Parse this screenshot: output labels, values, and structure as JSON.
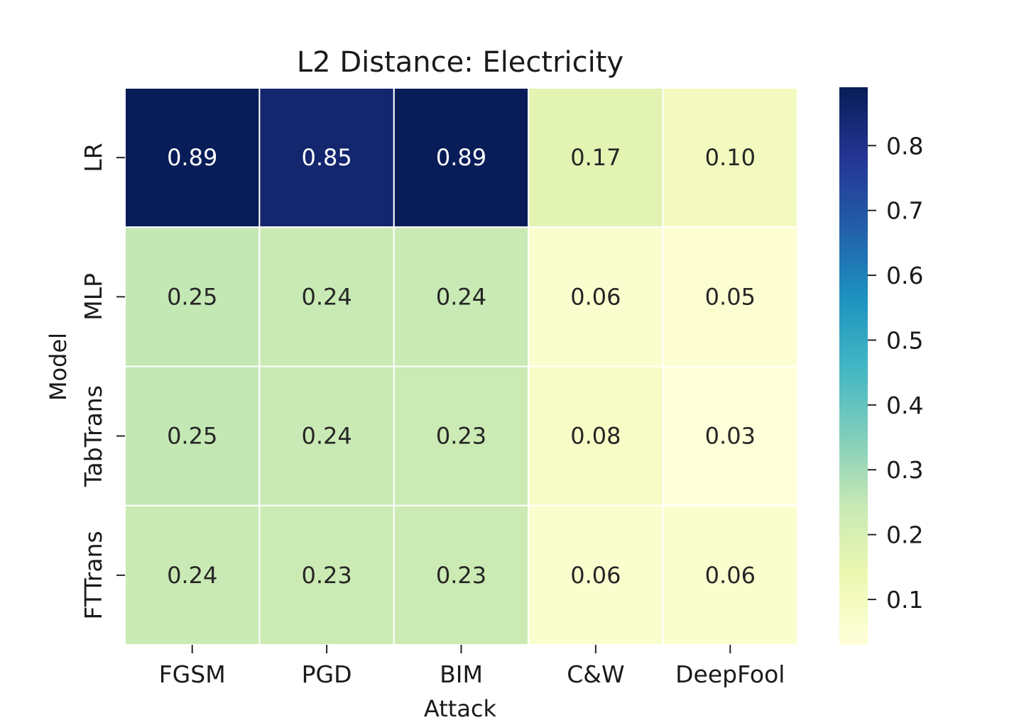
{
  "chart_data": {
    "type": "heatmap",
    "title": "L2 Distance: Electricity",
    "xlabel": "Attack",
    "ylabel": "Model",
    "x_categories": [
      "FGSM",
      "PGD",
      "BIM",
      "C&W",
      "DeepFool"
    ],
    "y_categories": [
      "LR",
      "MLP",
      "TabTrans",
      "FTTrans"
    ],
    "values": [
      [
        0.89,
        0.85,
        0.89,
        0.17,
        0.1
      ],
      [
        0.25,
        0.24,
        0.24,
        0.06,
        0.05
      ],
      [
        0.25,
        0.24,
        0.23,
        0.08,
        0.03
      ],
      [
        0.24,
        0.23,
        0.23,
        0.06,
        0.06
      ]
    ],
    "value_labels": [
      [
        "0.89",
        "0.85",
        "0.89",
        "0.17",
        "0.10"
      ],
      [
        "0.25",
        "0.24",
        "0.24",
        "0.06",
        "0.05"
      ],
      [
        "0.25",
        "0.24",
        "0.23",
        "0.08",
        "0.03"
      ],
      [
        "0.24",
        "0.23",
        "0.23",
        "0.06",
        "0.06"
      ]
    ],
    "colormap": "YlGnBu",
    "colorbar": {
      "range": [
        0.03,
        0.89
      ],
      "ticks": [
        0.1,
        0.2,
        0.3,
        0.4,
        0.5,
        0.6,
        0.7,
        0.8
      ],
      "tick_labels": [
        "0.1",
        "0.2",
        "0.3",
        "0.4",
        "0.5",
        "0.6",
        "0.7",
        "0.8"
      ],
      "placement": "right"
    },
    "grid": false
  }
}
